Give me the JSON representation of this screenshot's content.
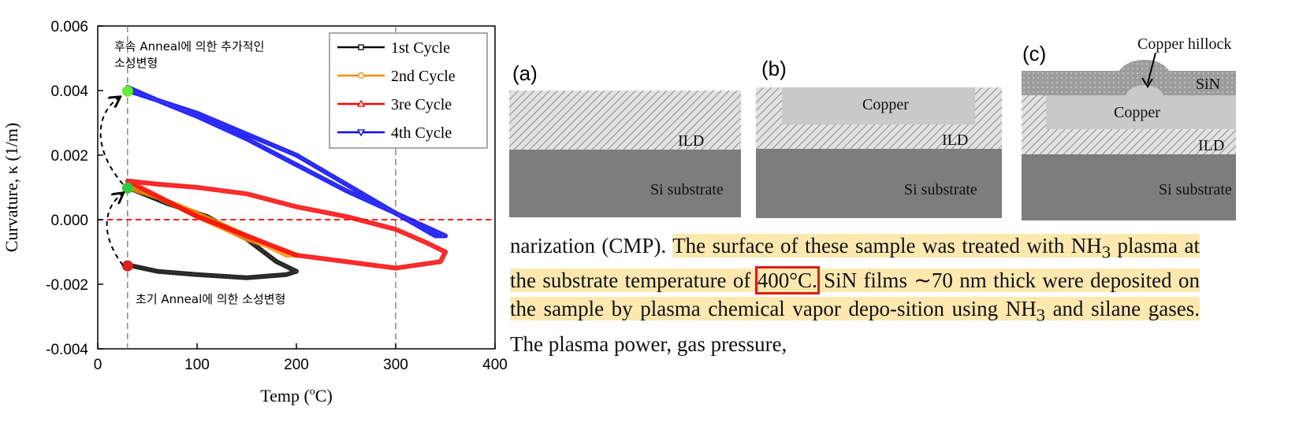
{
  "chart_data": {
    "type": "line",
    "xlabel": "Temp (",
    "xlabel_unit": "o",
    "xlabel_tail": "C)",
    "ylabel": "Curvature, κ (1/m)",
    "xlim": [
      0,
      400
    ],
    "ylim": [
      -0.004,
      0.006
    ],
    "x_ticks": [
      0,
      100,
      200,
      300,
      400
    ],
    "x_tick_labels": [
      "0",
      "100",
      "200",
      "300",
      "400"
    ],
    "y_ticks": [
      -0.004,
      -0.002,
      0.0,
      0.002,
      0.004,
      0.006
    ],
    "y_tick_labels": [
      "-0.004",
      "-0.002",
      "0.000",
      "0.002",
      "0.004",
      "0.006"
    ],
    "legend_position": "top-right",
    "reference_lines": {
      "zero_line_y": 0.0,
      "vertical_x": [
        30,
        300
      ]
    },
    "series": [
      {
        "name": "1st Cycle",
        "color": "#000000",
        "marker": "square",
        "x": [
          30,
          60,
          100,
          150,
          190,
          200,
          180,
          150,
          110,
          70,
          30
        ],
        "y": [
          -0.0014,
          -0.0016,
          -0.0017,
          -0.0018,
          -0.0017,
          -0.0016,
          -0.0013,
          -0.0006,
          0.0001,
          0.0005,
          0.001
        ]
      },
      {
        "name": "2nd Cycle",
        "color": "#ff8c00",
        "marker": "circle",
        "x": [
          30,
          60,
          100,
          150,
          200,
          190,
          150,
          100,
          60,
          30
        ],
        "y": [
          0.001,
          0.0007,
          0.0001,
          -0.0006,
          -0.0011,
          -0.0011,
          -0.0005,
          0.0002,
          0.0007,
          0.0011
        ]
      },
      {
        "name": "3re Cycle",
        "color": "#ff0000",
        "marker": "triangle-up",
        "x": [
          30,
          100,
          200,
          300,
          345,
          350,
          330,
          300,
          250,
          200,
          150,
          100,
          60,
          30
        ],
        "y": [
          0.0012,
          0.0001,
          -0.0011,
          -0.0015,
          -0.0013,
          -0.001,
          -0.0007,
          -0.0003,
          0.0001,
          0.0004,
          0.0008,
          0.001,
          0.0011,
          0.0012
        ]
      },
      {
        "name": "4th Cycle",
        "color": "#0000ff",
        "marker": "triangle-down",
        "x": [
          30,
          100,
          200,
          300,
          350,
          340,
          300,
          250,
          200,
          150,
          100,
          60,
          30
        ],
        "y": [
          0.004,
          0.0033,
          0.002,
          0.0002,
          -0.0005,
          -0.0005,
          0.0002,
          0.0009,
          0.0017,
          0.0025,
          0.0032,
          0.0037,
          0.0041
        ]
      }
    ],
    "points": [
      {
        "label": "red-dot",
        "x": 30,
        "y": -0.00143,
        "color": "#e02020"
      },
      {
        "label": "green-dot-1",
        "x": 30,
        "y": 0.00098,
        "color": "#2ecc40"
      },
      {
        "label": "green-dot-2",
        "x": 30,
        "y": 0.00398,
        "color": "#66ee33"
      }
    ],
    "annotations": {
      "top_line1": "후속 Anneal에 의한 추가적인",
      "top_line2": "소성변형",
      "bottom": "초기 Anneal에 의한 소성변형"
    }
  },
  "diagram": {
    "panels": [
      {
        "letter": "(a)",
        "labels": {
          "ild": "ILD",
          "substrate": "Si substrate"
        }
      },
      {
        "letter": "(b)",
        "labels": {
          "copper": "Copper",
          "ild": "ILD",
          "substrate": "Si substrate"
        }
      },
      {
        "letter": "(c)",
        "labels": {
          "hillock": "Copper hillock",
          "sin": "SiN",
          "copper": "Copper",
          "ild": "ILD",
          "substrate": "Si substrate"
        }
      }
    ],
    "colors": {
      "substrate": "#7d7d7d",
      "copper": "#c9c9c9",
      "sin": "#9a9a9a",
      "hatch_bg": "#d9d9d9"
    }
  },
  "paragraph": {
    "p1": "narization (CMP). ",
    "p2": "The surface of these sample was treated with NH",
    "p2_sub": "3",
    "p3": "plasma at the substrate temperature of ",
    "p4": "400°C.",
    "p5": " SiN films ∼70 nm thick were deposited on the sample by plasma chemical vapor depo-sition using NH",
    "p5_sub": "3",
    "p6": " and silane gases.",
    "p7": " The plasma power, gas pressure,"
  }
}
